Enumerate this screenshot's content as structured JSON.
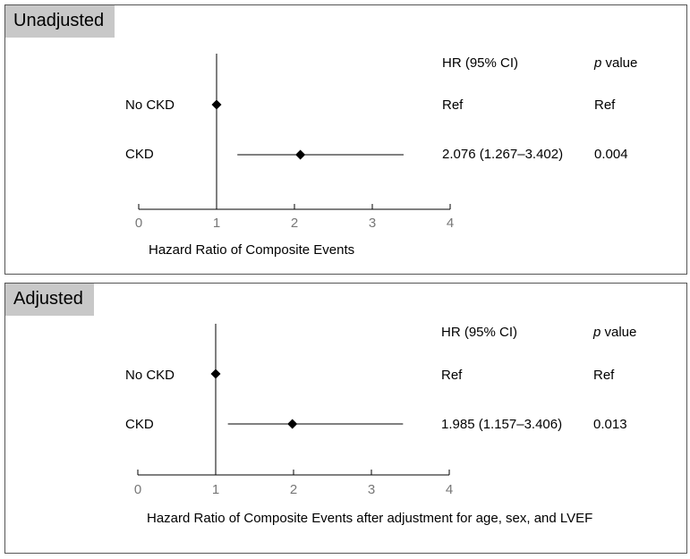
{
  "chart_data": [
    {
      "type": "forest",
      "panel_label": "Unadjusted",
      "xlabel": "Hazard Ratio of Composite Events",
      "xlim": [
        0,
        4
      ],
      "xticks": [
        "0",
        "1",
        "2",
        "3",
        "4"
      ],
      "reference_line": 1,
      "header": {
        "hr_label": "HR (95% CI)",
        "p_label_italic": "p",
        "p_label_rest": " value"
      },
      "rows": [
        {
          "label": "No CKD",
          "hr": 1,
          "ci": null,
          "hr_text": "Ref",
          "p_text": "Ref"
        },
        {
          "label": "CKD",
          "hr": 2.076,
          "ci": [
            1.267,
            3.402
          ],
          "hr_text": "2.076 (1.267–3.402)",
          "p_text": "0.004"
        }
      ]
    },
    {
      "type": "forest",
      "panel_label": "Adjusted",
      "xlabel": "Hazard Ratio of Composite Events after adjustment for age, sex, and LVEF",
      "xlim": [
        0,
        4
      ],
      "xticks": [
        "0",
        "1",
        "2",
        "3",
        "4"
      ],
      "reference_line": 1,
      "header": {
        "hr_label": "HR (95% CI)",
        "p_label_italic": "p",
        "p_label_rest": " value"
      },
      "rows": [
        {
          "label": "No CKD",
          "hr": 1,
          "ci": null,
          "hr_text": "Ref",
          "p_text": "Ref"
        },
        {
          "label": "CKD",
          "hr": 1.985,
          "ci": [
            1.157,
            3.406
          ],
          "hr_text": "1.985 (1.157–3.406)",
          "p_text": "0.013"
        }
      ]
    }
  ]
}
